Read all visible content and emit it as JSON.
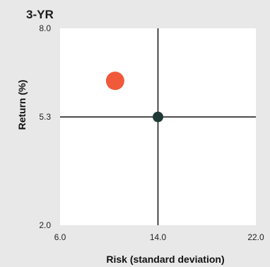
{
  "chart_data": {
    "type": "scatter",
    "title": "3-YR",
    "xlabel": "Risk (standard deviation)",
    "ylabel": "Return (%)",
    "xlim": [
      6.0,
      22.0
    ],
    "ylim": [
      2.0,
      8.0
    ],
    "x_ticks": [
      "6.0",
      "14.0",
      "22.0"
    ],
    "y_ticks": [
      "8.0",
      "5.3",
      "2.0"
    ],
    "crosshair": {
      "x": 14.0,
      "y": 5.3
    },
    "points": [
      {
        "x": 10.5,
        "y": 6.4,
        "color": "#f05a3a",
        "marker": "large-circle"
      },
      {
        "x": 14.0,
        "y": 5.3,
        "color": "#1f3a36",
        "marker": "small-circle"
      }
    ],
    "grid": false
  }
}
